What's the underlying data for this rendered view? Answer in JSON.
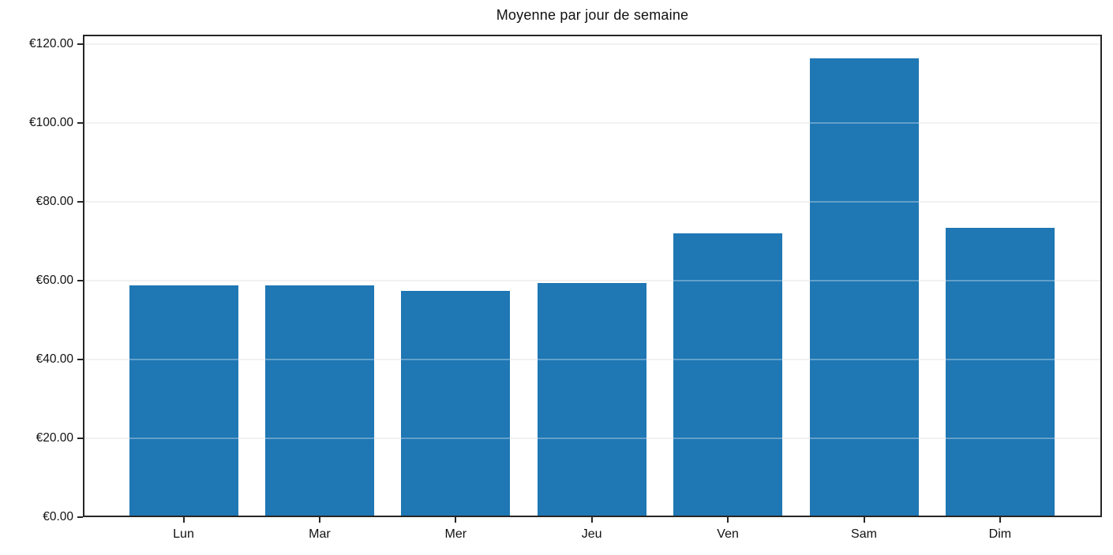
{
  "chart_data": {
    "type": "bar",
    "title": "Moyenne par jour de semaine",
    "categories": [
      "Lun",
      "Mar",
      "Mer",
      "Jeu",
      "Ven",
      "Sam",
      "Dim"
    ],
    "values": [
      58.7,
      58.7,
      57.3,
      59.3,
      71.9,
      116.4,
      73.3
    ],
    "xlabel": "",
    "ylabel": "",
    "ylim": [
      0,
      122
    ],
    "yticks": [
      0,
      20,
      40,
      60,
      80,
      100,
      120
    ],
    "ytick_labels": [
      "€0.00",
      "€20.00",
      "€40.00",
      "€60.00",
      "€80.00",
      "€100.00",
      "€120.00"
    ],
    "currency_symbol": "€",
    "legend": "none",
    "grid": "horizontal",
    "bar_color": "#1f77b4",
    "gridline_color": "#ebebeb",
    "frame_color": "#262626",
    "background_color": "#ffffff"
  }
}
